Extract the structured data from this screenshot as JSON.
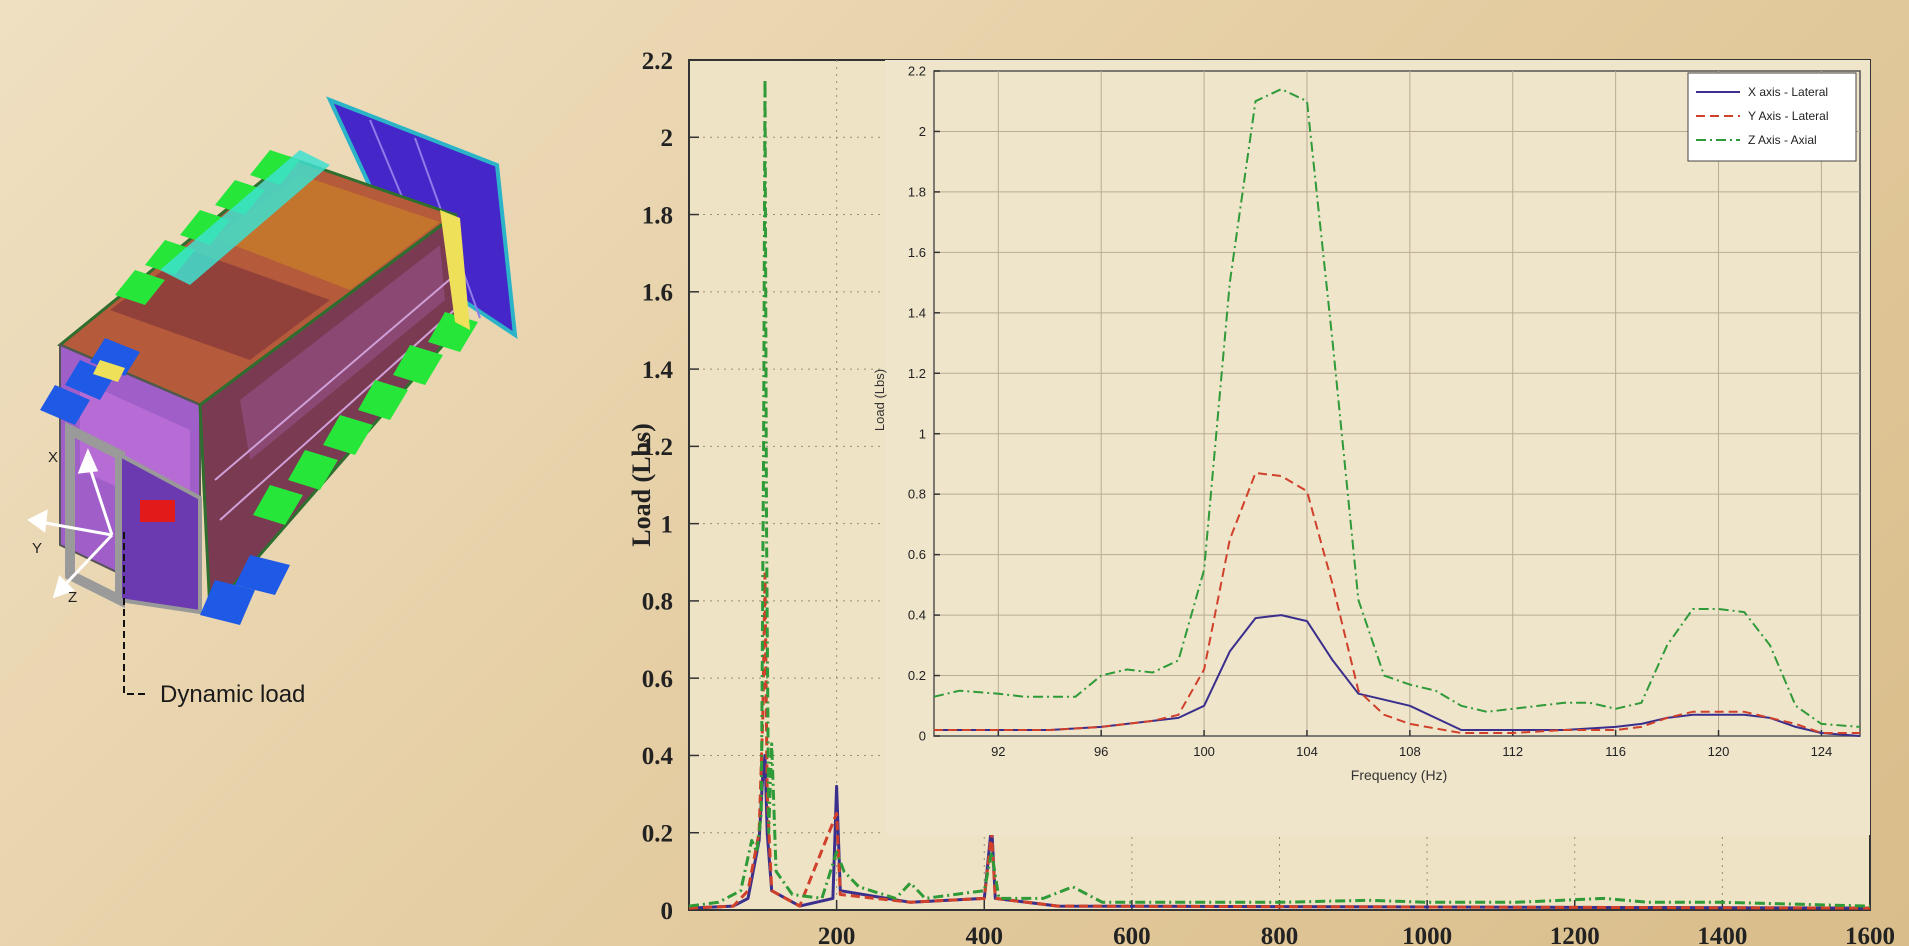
{
  "model": {
    "axis_labels": {
      "x": "X",
      "y": "Y",
      "z": "Z"
    },
    "callout": "Dynamic load"
  },
  "chart_data": [
    {
      "type": "line",
      "title": "",
      "xlabel": "",
      "ylabel": "Load (Lbs)",
      "xlim": [
        0,
        1600
      ],
      "ylim": [
        0,
        2.2
      ],
      "x_ticks": [
        200,
        400,
        600,
        800,
        1000,
        1200,
        1400,
        1600
      ],
      "y_ticks": [
        0,
        0.2,
        0.4,
        0.6,
        0.8,
        1,
        1.2,
        1.4,
        1.6,
        1.8,
        2,
        2.2
      ],
      "grid": true,
      "series": [
        {
          "name": "X axis - Lateral",
          "color": "#3a2f8c",
          "style": "solid",
          "points": [
            [
              0,
              0.005
            ],
            [
              60,
              0.01
            ],
            [
              80,
              0.03
            ],
            [
              95,
              0.18
            ],
            [
              100,
              0.35
            ],
            [
              103,
              0.4
            ],
            [
              106,
              0.2
            ],
            [
              112,
              0.05
            ],
            [
              150,
              0.01
            ],
            [
              195,
              0.03
            ],
            [
              200,
              0.32
            ],
            [
              205,
              0.05
            ],
            [
              300,
              0.02
            ],
            [
              400,
              0.03
            ],
            [
              410,
              0.22
            ],
            [
              415,
              0.03
            ],
            [
              500,
              0.01
            ],
            [
              1600,
              0.005
            ]
          ]
        },
        {
          "name": "Y Axis - Lateral",
          "color": "#d0402a",
          "style": "dashed",
          "points": [
            [
              0,
              0.005
            ],
            [
              60,
              0.01
            ],
            [
              80,
              0.05
            ],
            [
              95,
              0.2
            ],
            [
              100,
              0.5
            ],
            [
              103,
              0.87
            ],
            [
              106,
              0.3
            ],
            [
              112,
              0.05
            ],
            [
              150,
              0.01
            ],
            [
              200,
              0.25
            ],
            [
              205,
              0.04
            ],
            [
              300,
              0.02
            ],
            [
              400,
              0.03
            ],
            [
              410,
              0.2
            ],
            [
              415,
              0.03
            ],
            [
              500,
              0.01
            ],
            [
              1600,
              0.005
            ]
          ]
        },
        {
          "name": "Z Axis - Axial",
          "color": "#2f9a38",
          "style": "dashdot",
          "points": [
            [
              0,
              0.01
            ],
            [
              40,
              0.02
            ],
            [
              70,
              0.05
            ],
            [
              85,
              0.18
            ],
            [
              92,
              0.15
            ],
            [
              98,
              0.25
            ],
            [
              101,
              1.2
            ],
            [
              103,
              2.15
            ],
            [
              105,
              1.0
            ],
            [
              108,
              0.2
            ],
            [
              112,
              0.43
            ],
            [
              118,
              0.1
            ],
            [
              140,
              0.04
            ],
            [
              180,
              0.03
            ],
            [
              200,
              0.15
            ],
            [
              210,
              0.1
            ],
            [
              230,
              0.06
            ],
            [
              280,
              0.03
            ],
            [
              300,
              0.07
            ],
            [
              320,
              0.03
            ],
            [
              360,
              0.04
            ],
            [
              400,
              0.05
            ],
            [
              410,
              0.15
            ],
            [
              420,
              0.03
            ],
            [
              480,
              0.03
            ],
            [
              520,
              0.06
            ],
            [
              560,
              0.02
            ],
            [
              700,
              0.02
            ],
            [
              800,
              0.02
            ],
            [
              920,
              0.025
            ],
            [
              1000,
              0.02
            ],
            [
              1120,
              0.02
            ],
            [
              1240,
              0.03
            ],
            [
              1300,
              0.02
            ],
            [
              1400,
              0.02
            ],
            [
              1600,
              0.01
            ]
          ]
        }
      ]
    },
    {
      "type": "line",
      "title": "",
      "xlabel": "Frequency (Hz)",
      "ylabel": "Load (Lbs)",
      "xlim": [
        89.5,
        125.5
      ],
      "ylim": [
        0,
        2.2
      ],
      "x_ticks": [
        92,
        96,
        100,
        104,
        108,
        112,
        116,
        120,
        124
      ],
      "y_ticks": [
        0,
        0.2,
        0.4,
        0.6,
        0.8,
        1,
        1.2,
        1.4,
        1.6,
        1.8,
        2,
        2.2
      ],
      "grid": true,
      "legend": "top-right",
      "series": [
        {
          "name": "X axis - Lateral",
          "color": "#3a2f8c",
          "style": "solid",
          "points": [
            [
              89.5,
              0.02
            ],
            [
              92,
              0.02
            ],
            [
              94,
              0.02
            ],
            [
              96,
              0.03
            ],
            [
              98,
              0.05
            ],
            [
              99,
              0.06
            ],
            [
              100,
              0.1
            ],
            [
              101,
              0.28
            ],
            [
              102,
              0.39
            ],
            [
              103,
              0.4
            ],
            [
              104,
              0.38
            ],
            [
              105,
              0.25
            ],
            [
              106,
              0.14
            ],
            [
              107,
              0.12
            ],
            [
              108,
              0.1
            ],
            [
              110,
              0.02
            ],
            [
              112,
              0.02
            ],
            [
              114,
              0.02
            ],
            [
              116,
              0.03
            ],
            [
              117,
              0.04
            ],
            [
              118,
              0.06
            ],
            [
              119,
              0.07
            ],
            [
              120,
              0.07
            ],
            [
              121,
              0.07
            ],
            [
              122,
              0.06
            ],
            [
              123,
              0.03
            ],
            [
              124,
              0.01
            ],
            [
              125.5,
              0.0
            ]
          ]
        },
        {
          "name": "Y Axis - Lateral",
          "color": "#d0402a",
          "style": "dashed",
          "points": [
            [
              89.5,
              0.02
            ],
            [
              92,
              0.02
            ],
            [
              94,
              0.02
            ],
            [
              96,
              0.03
            ],
            [
              98,
              0.05
            ],
            [
              99,
              0.07
            ],
            [
              100,
              0.22
            ],
            [
              101,
              0.65
            ],
            [
              102,
              0.87
            ],
            [
              103,
              0.86
            ],
            [
              104,
              0.81
            ],
            [
              105,
              0.5
            ],
            [
              106,
              0.15
            ],
            [
              107,
              0.07
            ],
            [
              108,
              0.04
            ],
            [
              110,
              0.01
            ],
            [
              112,
              0.01
            ],
            [
              114,
              0.02
            ],
            [
              116,
              0.02
            ],
            [
              117,
              0.03
            ],
            [
              118,
              0.06
            ],
            [
              119,
              0.08
            ],
            [
              120,
              0.08
            ],
            [
              121,
              0.08
            ],
            [
              122,
              0.06
            ],
            [
              123,
              0.04
            ],
            [
              124,
              0.01
            ],
            [
              125.5,
              0.01
            ]
          ]
        },
        {
          "name": "Z Axis - Axial",
          "color": "#2f9a38",
          "style": "dashdot",
          "points": [
            [
              89.5,
              0.13
            ],
            [
              90.5,
              0.15
            ],
            [
              92,
              0.14
            ],
            [
              93,
              0.13
            ],
            [
              94,
              0.13
            ],
            [
              95,
              0.13
            ],
            [
              96,
              0.2
            ],
            [
              97,
              0.22
            ],
            [
              98,
              0.21
            ],
            [
              99,
              0.25
            ],
            [
              100,
              0.55
            ],
            [
              101,
              1.5
            ],
            [
              102,
              2.1
            ],
            [
              103,
              2.14
            ],
            [
              104,
              2.1
            ],
            [
              105,
              1.3
            ],
            [
              106,
              0.45
            ],
            [
              107,
              0.2
            ],
            [
              108,
              0.17
            ],
            [
              109,
              0.15
            ],
            [
              110,
              0.1
            ],
            [
              111,
              0.08
            ],
            [
              112,
              0.09
            ],
            [
              113,
              0.1
            ],
            [
              114,
              0.11
            ],
            [
              115,
              0.11
            ],
            [
              116,
              0.09
            ],
            [
              117,
              0.11
            ],
            [
              118,
              0.3
            ],
            [
              119,
              0.42
            ],
            [
              120,
              0.42
            ],
            [
              121,
              0.41
            ],
            [
              122,
              0.3
            ],
            [
              123,
              0.1
            ],
            [
              124,
              0.04
            ],
            [
              125.5,
              0.03
            ]
          ]
        }
      ]
    }
  ]
}
